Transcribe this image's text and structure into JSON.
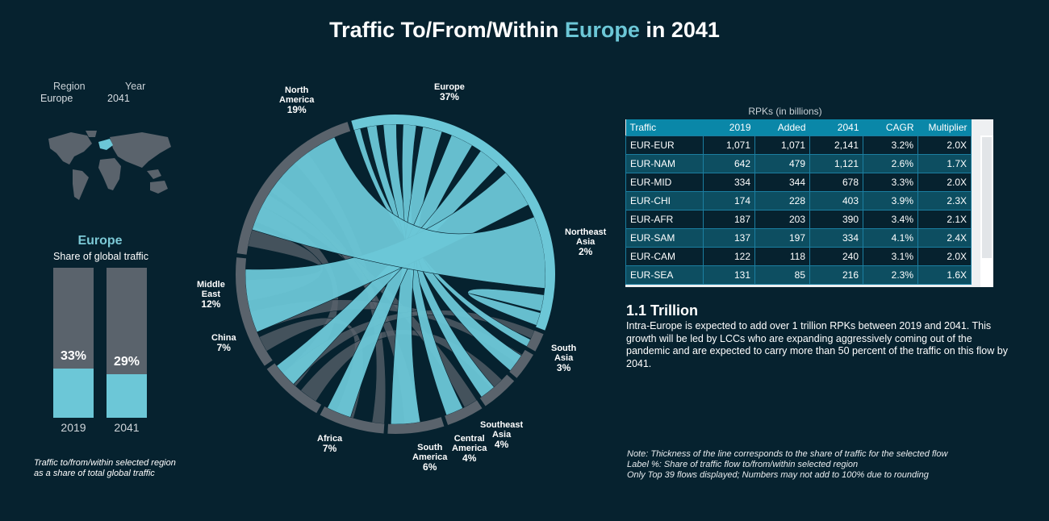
{
  "title": {
    "prefix": "Traffic To/From/Within ",
    "highlight": "Europe",
    "suffix": " in 2041"
  },
  "filters": {
    "region_header": "Region",
    "year_header": "Year",
    "region_value": "Europe",
    "year_value": "2041"
  },
  "share_panel": {
    "region": "Europe",
    "subtitle": "Share of global traffic",
    "bars": [
      {
        "year": "2019",
        "share": 33,
        "label": "33%"
      },
      {
        "year": "2041",
        "share": 29,
        "label": "29%"
      }
    ],
    "note_line1": "Traffic to/from/within selected region",
    "note_line2": "as a share of total global traffic"
  },
  "chart_data": {
    "type": "chord",
    "selected_region": "Europe",
    "segments": [
      {
        "name": "Europe",
        "pct": "37%",
        "share": 37
      },
      {
        "name": "Northeast Asia",
        "pct": "2%",
        "share": 2
      },
      {
        "name": "South Asia",
        "pct": "3%",
        "share": 3
      },
      {
        "name": "Southeast Asia",
        "pct": "4%",
        "share": 4
      },
      {
        "name": "Central America",
        "pct": "4%",
        "share": 4
      },
      {
        "name": "South America",
        "pct": "6%",
        "share": 6
      },
      {
        "name": "Africa",
        "pct": "7%",
        "share": 7
      },
      {
        "name": "China",
        "pct": "7%",
        "share": 7
      },
      {
        "name": "Middle East",
        "pct": "12%",
        "share": 12
      },
      {
        "name": "North America",
        "pct": "19%",
        "share": 19
      }
    ],
    "highlight_color": "#6cc7d7",
    "base_color": "#5a636c"
  },
  "labels": {
    "north_america": {
      "l1": "North",
      "l2": "America",
      "p": "19%"
    },
    "europe": {
      "l1": "Europe",
      "p": "37%"
    },
    "northeast_asia": {
      "l1": "Northeast",
      "l2": "Asia",
      "p": "2%"
    },
    "south_asia": {
      "l1": "South",
      "l2": "Asia",
      "p": "3%"
    },
    "southeast_asia": {
      "l1": "Southeast",
      "l2": "Asia",
      "p": "4%"
    },
    "central_america": {
      "l1": "Central",
      "l2": "America",
      "p": "4%"
    },
    "south_america": {
      "l1": "South",
      "l2": "America",
      "p": "6%"
    },
    "africa": {
      "l1": "Africa",
      "p": "7%"
    },
    "china": {
      "l1": "China",
      "p": "7%"
    },
    "middle_east": {
      "l1": "Middle",
      "l2": "East",
      "p": "12%"
    }
  },
  "table": {
    "caption": "RPKs (in billions)",
    "columns": [
      "Traffic",
      "2019",
      "Added",
      "2041",
      "CAGR",
      "Multiplier"
    ],
    "rows": [
      [
        "EUR-EUR",
        "1,071",
        "1,071",
        "2,141",
        "3.2%",
        "2.0X"
      ],
      [
        "EUR-NAM",
        "642",
        "479",
        "1,121",
        "2.6%",
        "1.7X"
      ],
      [
        "EUR-MID",
        "334",
        "344",
        "678",
        "3.3%",
        "2.0X"
      ],
      [
        "EUR-CHI",
        "174",
        "228",
        "403",
        "3.9%",
        "2.3X"
      ],
      [
        "EUR-AFR",
        "187",
        "203",
        "390",
        "3.4%",
        "2.1X"
      ],
      [
        "EUR-SAM",
        "137",
        "197",
        "334",
        "4.1%",
        "2.4X"
      ],
      [
        "EUR-CAM",
        "122",
        "118",
        "240",
        "3.1%",
        "2.0X"
      ],
      [
        "EUR-SEA",
        "131",
        "85",
        "216",
        "2.3%",
        "1.6X"
      ]
    ]
  },
  "insight": {
    "headline": "1.1 Trillion",
    "body": "Intra-Europe is expected to add over 1 trillion RPKs between 2019 and 2041. This growth will be led by LCCs who are expanding aggressively coming out of the pandemic and are expected to carry more than 50 percent of the traffic on this flow by 2041."
  },
  "notes": [
    "Note: Thickness of the line corresponds to the share of traffic for the selected flow",
    "Label %: Share of traffic flow to/from/within selected region",
    "Only Top 39 flows displayed; Numbers may not add to 100% due to rounding"
  ]
}
